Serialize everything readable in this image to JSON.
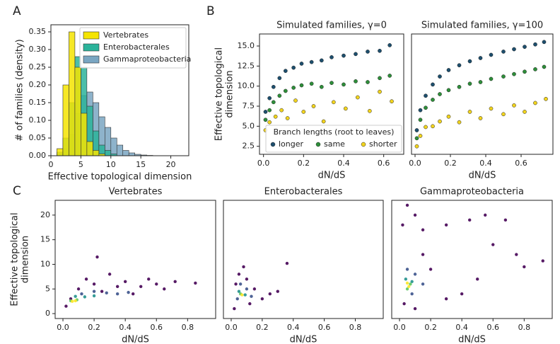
{
  "chart_data": [
    {
      "type": "histogram",
      "panel_label": "A",
      "ylabel": [
        "# of families (density)"
      ],
      "xlabel": "Effective topological dimension",
      "xlim": [
        0,
        23
      ],
      "xticks": [
        0,
        5,
        10,
        15,
        20
      ],
      "ylim": [
        0,
        0.37
      ],
      "yticks": [
        {
          "value": 0,
          "label": "0.00"
        },
        0.05,
        {
          "value": 0.1,
          "label": "0.10"
        },
        0.15,
        {
          "value": 0.2,
          "label": "0.20"
        },
        0.25,
        {
          "value": 0.3,
          "label": "0.30"
        },
        0.35
      ],
      "legend": "upper right",
      "bins": [
        0,
        1,
        2,
        3,
        4,
        5,
        6,
        7,
        8,
        9,
        10,
        11,
        12,
        13,
        14,
        15,
        16,
        17,
        18,
        19,
        20
      ],
      "series": [
        {
          "name": "Vertebrates",
          "color": "#f5e400",
          "values": [
            0,
            0.02,
            0.2,
            0.35,
            0.25,
            0.12,
            0.04,
            0.015,
            0.005,
            0,
            0,
            0,
            0,
            0,
            0,
            0,
            0,
            0,
            0,
            0
          ]
        },
        {
          "name": "Enterobacterales",
          "color": "#2bb39a",
          "values": [
            0,
            0.01,
            0.05,
            0.15,
            0.28,
            0.25,
            0.14,
            0.07,
            0.03,
            0.015,
            0.005,
            0,
            0,
            0,
            0,
            0,
            0,
            0,
            0,
            0
          ]
        },
        {
          "name": "Gammaproteobacteria",
          "color": "#7aa6c2",
          "values": [
            0,
            0.005,
            0.02,
            0.06,
            0.12,
            0.17,
            0.18,
            0.15,
            0.11,
            0.08,
            0.05,
            0.03,
            0.015,
            0.008,
            0.004,
            0.002,
            0.001,
            0,
            0,
            0
          ]
        }
      ]
    },
    {
      "type": "scatter",
      "panel_label": "B",
      "title": "Simulated families, γ=0",
      "ylabel": [
        "Effective topological",
        "dimension"
      ],
      "xlabel": "dN/dS",
      "xlim": [
        -0.02,
        0.7
      ],
      "xticks": [
        {
          "value": 0,
          "label": "0.0"
        },
        0.2,
        0.4,
        0.6
      ],
      "ylim": [
        1.5,
        16.5
      ],
      "yticks": [
        2.5,
        {
          "value": 5,
          "label": "5.0"
        },
        7.5,
        {
          "value": 10,
          "label": "10.0"
        },
        12.5,
        {
          "value": 15,
          "label": "15.0"
        }
      ],
      "legend": "lower right",
      "legend_title": "Branch lengths (root to leaves)",
      "series": [
        {
          "name": "longer",
          "color": "#1d4f6e",
          "x": [
            0.01,
            0.03,
            0.05,
            0.08,
            0.11,
            0.15,
            0.19,
            0.24,
            0.29,
            0.34,
            0.4,
            0.46,
            0.52,
            0.58,
            0.63
          ],
          "values": [
            6.8,
            8.5,
            9.9,
            11.0,
            11.9,
            12.3,
            12.8,
            13.0,
            13.2,
            13.6,
            13.8,
            14.0,
            14.3,
            14.4,
            15.1
          ]
        },
        {
          "name": "same",
          "color": "#2e8f3a",
          "x": [
            0.01,
            0.03,
            0.05,
            0.08,
            0.11,
            0.15,
            0.19,
            0.24,
            0.29,
            0.34,
            0.4,
            0.46,
            0.52,
            0.58,
            0.63
          ],
          "values": [
            5.8,
            7.0,
            8.0,
            8.8,
            9.4,
            9.8,
            10.1,
            10.3,
            9.9,
            10.4,
            10.2,
            10.6,
            10.5,
            11.0,
            11.3
          ]
        },
        {
          "name": "shorter",
          "color": "#f2d41e",
          "x": [
            0.01,
            0.03,
            0.06,
            0.09,
            0.12,
            0.16,
            0.2,
            0.25,
            0.3,
            0.35,
            0.41,
            0.47,
            0.53,
            0.58,
            0.64
          ],
          "values": [
            4.5,
            5.5,
            6.2,
            7.0,
            6.0,
            8.2,
            6.8,
            7.5,
            5.6,
            8.0,
            7.2,
            8.6,
            6.9,
            9.3,
            8.1
          ]
        }
      ]
    },
    {
      "type": "scatter",
      "title": "Simulated families, γ=100",
      "xlabel": "dN/dS",
      "xlim": [
        -0.02,
        0.78
      ],
      "xticks": [
        {
          "value": 0,
          "label": "0.0"
        },
        0.2,
        0.4,
        0.6
      ],
      "ylim": [
        1.5,
        16.5
      ],
      "series": [
        {
          "color": "#1d4f6e",
          "x": [
            0.01,
            0.03,
            0.06,
            0.1,
            0.14,
            0.19,
            0.25,
            0.31,
            0.37,
            0.43,
            0.5,
            0.56,
            0.62,
            0.68,
            0.73
          ],
          "values": [
            4.5,
            7.0,
            8.8,
            10.2,
            11.2,
            12.0,
            12.6,
            13.1,
            13.5,
            13.9,
            14.3,
            14.6,
            14.9,
            15.2,
            15.5
          ]
        },
        {
          "color": "#2e8f3a",
          "x": [
            0.01,
            0.03,
            0.06,
            0.1,
            0.14,
            0.19,
            0.25,
            0.31,
            0.37,
            0.43,
            0.5,
            0.56,
            0.62,
            0.68,
            0.73
          ],
          "values": [
            3.5,
            5.8,
            7.3,
            8.3,
            9.0,
            9.5,
            9.9,
            10.3,
            10.5,
            10.9,
            11.2,
            11.5,
            11.8,
            12.1,
            12.4
          ]
        },
        {
          "color": "#f2d41e",
          "x": [
            0.01,
            0.03,
            0.06,
            0.1,
            0.14,
            0.19,
            0.25,
            0.31,
            0.37,
            0.43,
            0.5,
            0.56,
            0.62,
            0.68,
            0.74
          ],
          "values": [
            2.5,
            3.8,
            4.9,
            5.0,
            5.6,
            6.2,
            5.5,
            6.8,
            6.0,
            7.2,
            6.5,
            7.6,
            6.8,
            7.9,
            8.4
          ]
        }
      ]
    },
    {
      "type": "density",
      "panel_label": "C",
      "title": "Vertebrates",
      "ylabel": [
        "Effective topological",
        "dimension"
      ],
      "xlabel": "dN/dS",
      "xlim": [
        -0.05,
        0.98
      ],
      "xticks": [
        {
          "value": 0,
          "label": "0.0"
        },
        0.2,
        0.4,
        0.6,
        0.8
      ],
      "ylim": [
        -1,
        23
      ],
      "yticks": [
        0,
        5,
        10,
        15,
        20
      ],
      "x": [
        0.02,
        0.05,
        0.1,
        0.15,
        0.2,
        0.25,
        0.3,
        0.35,
        0.4,
        0.45,
        0.5,
        0.55,
        0.6,
        0.65,
        0.72,
        0.85,
        0.22,
        0.12,
        0.2,
        0.28,
        0.35,
        0.42,
        0.08,
        0.14,
        0.2,
        0.05,
        0.09,
        0.06,
        0.08
      ],
      "values": [
        1.5,
        3,
        5,
        7,
        6,
        4.5,
        8,
        5.5,
        6.5,
        4,
        5.5,
        7,
        6,
        5,
        6.5,
        6.2,
        11.5,
        4,
        4.5,
        4.2,
        4.0,
        4.3,
        3.5,
        3.4,
        3.6,
        2.6,
        2.8,
        2.5,
        2.6
      ],
      "colors": [
        "#440154",
        "#440154",
        "#440154",
        "#440154",
        "#440154",
        "#440154",
        "#440154",
        "#440154",
        "#440154",
        "#440154",
        "#440154",
        "#440154",
        "#440154",
        "#440154",
        "#440154",
        "#440154",
        "#440154",
        "#3b528b",
        "#3b528b",
        "#3b528b",
        "#3b528b",
        "#3b528b",
        "#21918c",
        "#21918c",
        "#21918c",
        "#5ec962",
        "#5ec962",
        "#fde725",
        "#fde725"
      ]
    },
    {
      "type": "density",
      "title": "Enterobacterales",
      "xlabel": "dN/dS",
      "xlim": [
        -0.05,
        0.98
      ],
      "xticks": [
        {
          "value": 0,
          "label": "0.0"
        },
        0.2,
        0.4,
        0.6,
        0.8
      ],
      "ylim": [
        -1,
        23
      ],
      "x": [
        0.02,
        0.03,
        0.05,
        0.08,
        0.1,
        0.12,
        0.15,
        0.2,
        0.25,
        0.3,
        0.36,
        0.06,
        0.1,
        0.04,
        0.13,
        0.05,
        0.09,
        0.06,
        0.07
      ],
      "values": [
        1,
        6,
        8,
        9.5,
        7,
        2,
        5,
        3,
        4,
        4.5,
        10.2,
        6,
        5,
        3,
        3.5,
        4.5,
        3.8,
        4,
        3.8
      ],
      "colors": [
        "#440154",
        "#440154",
        "#440154",
        "#440154",
        "#440154",
        "#440154",
        "#440154",
        "#440154",
        "#440154",
        "#440154",
        "#440154",
        "#3b528b",
        "#3b528b",
        "#3b528b",
        "#3b528b",
        "#21918c",
        "#21918c",
        "#5ec962",
        "#fde725"
      ]
    },
    {
      "type": "density",
      "title": "Gammaproteobacteria",
      "xlabel": "dN/dS",
      "xlim": [
        -0.05,
        0.98
      ],
      "xticks": [
        {
          "value": 0,
          "label": "0.0"
        },
        0.2,
        0.4,
        0.6,
        0.8
      ],
      "ylim": [
        -1,
        23
      ],
      "x": [
        0.02,
        0.05,
        0.1,
        0.15,
        0.3,
        0.45,
        0.55,
        0.68,
        0.6,
        0.75,
        0.8,
        0.92,
        0.5,
        0.4,
        0.3,
        0.2,
        0.15,
        0.03,
        0.1,
        0.05,
        0.1,
        0.08,
        0.15,
        0.04,
        0.08,
        0.05,
        0.07,
        0.06,
        0.05
      ],
      "values": [
        18,
        22,
        20,
        17,
        18,
        19,
        20,
        19,
        14,
        12,
        9.5,
        10.7,
        7,
        4,
        3,
        9,
        12,
        2,
        1,
        9,
        8,
        4,
        6,
        7,
        6.5,
        5,
        6,
        5.5,
        6.2
      ],
      "colors": [
        "#440154",
        "#440154",
        "#440154",
        "#440154",
        "#440154",
        "#440154",
        "#440154",
        "#440154",
        "#440154",
        "#440154",
        "#440154",
        "#440154",
        "#440154",
        "#440154",
        "#440154",
        "#440154",
        "#440154",
        "#440154",
        "#440154",
        "#3b528b",
        "#3b528b",
        "#3b528b",
        "#3b528b",
        "#21918c",
        "#21918c",
        "#5ec962",
        "#5ec962",
        "#fde725",
        "#fde725"
      ]
    }
  ]
}
